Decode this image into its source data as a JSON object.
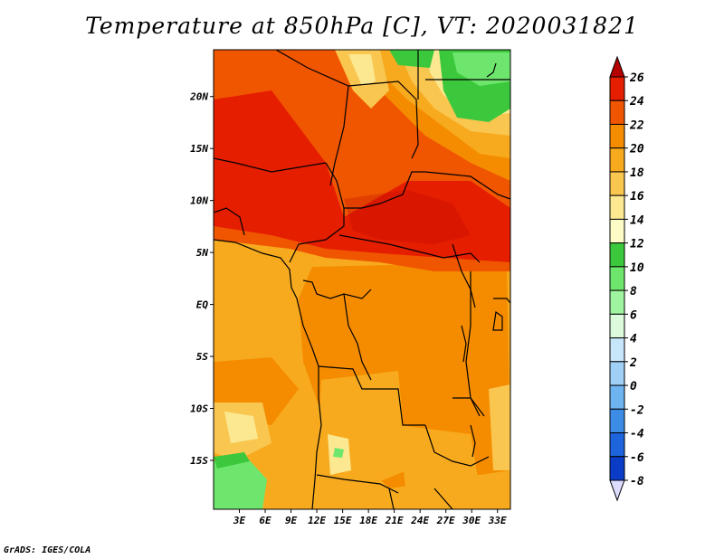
{
  "title": "Temperature at 850hPa [C], VT: 2020031821",
  "credit": "GrADS: IGES/COLA",
  "map": {
    "lat_labels": [
      {
        "label": "20N",
        "value": 20
      },
      {
        "label": "15N",
        "value": 15
      },
      {
        "label": "10N",
        "value": 10
      },
      {
        "label": "5N",
        "value": 5
      },
      {
        "label": "EQ",
        "value": 0
      },
      {
        "label": "5S",
        "value": -5
      },
      {
        "label": "10S",
        "value": -10
      },
      {
        "label": "15S",
        "value": -15
      }
    ],
    "lon_labels": [
      {
        "label": "3E",
        "value": 3
      },
      {
        "label": "6E",
        "value": 6
      },
      {
        "label": "9E",
        "value": 9
      },
      {
        "label": "12E",
        "value": 12
      },
      {
        "label": "15E",
        "value": 15
      },
      {
        "label": "18E",
        "value": 18
      },
      {
        "label": "21E",
        "value": 21
      },
      {
        "label": "24E",
        "value": 24
      },
      {
        "label": "27E",
        "value": 27
      },
      {
        "label": "30E",
        "value": 30
      },
      {
        "label": "33E",
        "value": 33
      }
    ],
    "lon_range": [
      0,
      34.5
    ],
    "lat_range": [
      -19.7,
      24.5
    ]
  },
  "colorbar": {
    "levels": [
      "26",
      "24",
      "22",
      "20",
      "18",
      "16",
      "14",
      "12",
      "10",
      "8",
      "6",
      "4",
      "2",
      "0",
      "-2",
      "-4",
      "-6",
      "-8"
    ],
    "colors": [
      "#b40000",
      "#e61e00",
      "#f05500",
      "#f58c00",
      "#f7aa1e",
      "#f9c650",
      "#fbe891",
      "#fdfcc7",
      "#3cc83c",
      "#6ee66e",
      "#9ff59f",
      "#dcfadc",
      "#c8e6fa",
      "#a0d0f5",
      "#6eb4f0",
      "#3c8ce6",
      "#1e64dc",
      "#0a3cc8",
      "#0a1e96",
      "#050a6e"
    ]
  }
}
